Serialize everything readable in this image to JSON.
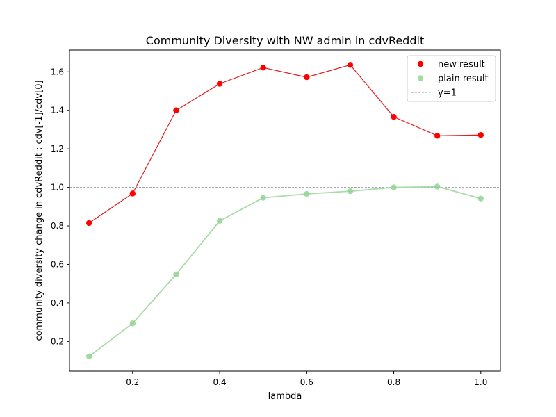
{
  "chart_data": {
    "type": "line",
    "title": "Community Diversity with NW admin in cdvReddit",
    "xlabel": "lambda",
    "ylabel": "community diversity change in cdvReddit : cdv[-1]/cdv[0]",
    "xlim": [
      0.055,
      1.045
    ],
    "ylim": [
      0.046,
      1.713
    ],
    "xticks": [
      0.2,
      0.4,
      0.6,
      0.8,
      1.0
    ],
    "xtick_labels": [
      "0.2",
      "0.4",
      "0.6",
      "0.8",
      "1.0"
    ],
    "yticks": [
      0.2,
      0.4,
      0.6,
      0.8,
      1.0,
      1.2,
      1.4,
      1.6
    ],
    "ytick_labels": [
      "0.2",
      "0.4",
      "0.6",
      "0.8",
      "1.0",
      "1.2",
      "1.4",
      "1.6"
    ],
    "grid": false,
    "legend_position": "top-right",
    "x": [
      0.1,
      0.2,
      0.3,
      0.4,
      0.5,
      0.6,
      0.7,
      0.8,
      0.9,
      1.0
    ],
    "series": [
      {
        "name": "new result",
        "color": "#ff0000",
        "line_color": "#e41a1c",
        "values": [
          0.815,
          0.968,
          1.4,
          1.538,
          1.622,
          1.572,
          1.636,
          1.366,
          1.268,
          1.272
        ]
      },
      {
        "name": "plain result",
        "color": "#8fd18f",
        "line_color": "#a8dba8",
        "values": [
          0.122,
          0.294,
          0.548,
          0.826,
          0.946,
          0.966,
          0.98,
          1.0,
          1.004,
          0.942
        ]
      }
    ],
    "reference_line": {
      "name": "y=1",
      "y": 1.0,
      "color": "#999999"
    }
  }
}
